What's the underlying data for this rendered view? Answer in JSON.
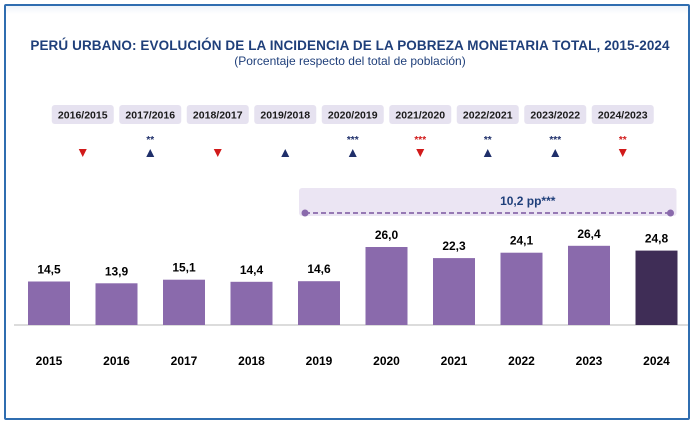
{
  "title": "PERÚ URBANO: EVOLUCIÓN DE LA INCIDENCIA DE LA POBREZA MONETARIA TOTAL, 2015-2024",
  "subtitle": "(Porcentaje respecto del total de población)",
  "colors": {
    "bar": "#8a6aac",
    "bar_highlight": "#3f2d56",
    "up_arrow": "#1f2f6a",
    "down_arrow": "#d11a1a",
    "period_box": "#e6e2f0",
    "bracket": "#8a6aac",
    "bracket_box": "#ebe5f3"
  },
  "chart_data": {
    "type": "bar",
    "categories": [
      "2015",
      "2016",
      "2017",
      "2018",
      "2019",
      "2020",
      "2021",
      "2022",
      "2023",
      "2024"
    ],
    "values": [
      14.5,
      13.9,
      15.1,
      14.4,
      14.6,
      26.0,
      22.3,
      24.1,
      26.4,
      24.8
    ],
    "value_labels": [
      "14,5",
      "13,9",
      "15,1",
      "14,4",
      "14,6",
      "26,0",
      "22,3",
      "24,1",
      "26,4",
      "24,8"
    ],
    "highlight_index": 9,
    "ylim": [
      0,
      30
    ],
    "grid": false,
    "legend": "none",
    "comparisons": [
      {
        "period": "2016/2015",
        "direction": "down",
        "significance": ""
      },
      {
        "period": "2017/2016",
        "direction": "up",
        "significance": "**"
      },
      {
        "period": "2018/2017",
        "direction": "down",
        "significance": ""
      },
      {
        "period": "2019/2018",
        "direction": "up",
        "significance": ""
      },
      {
        "period": "2020/2019",
        "direction": "up",
        "significance": "***"
      },
      {
        "period": "2021/2020",
        "direction": "down",
        "significance": "***"
      },
      {
        "period": "2022/2021",
        "direction": "up",
        "significance": "**"
      },
      {
        "period": "2023/2022",
        "direction": "up",
        "significance": "***"
      },
      {
        "period": "2024/2023",
        "direction": "down",
        "significance": "**"
      }
    ],
    "bracket": {
      "from": "2019",
      "to": "2024",
      "label": "10,2 pp",
      "significance": "***"
    }
  }
}
